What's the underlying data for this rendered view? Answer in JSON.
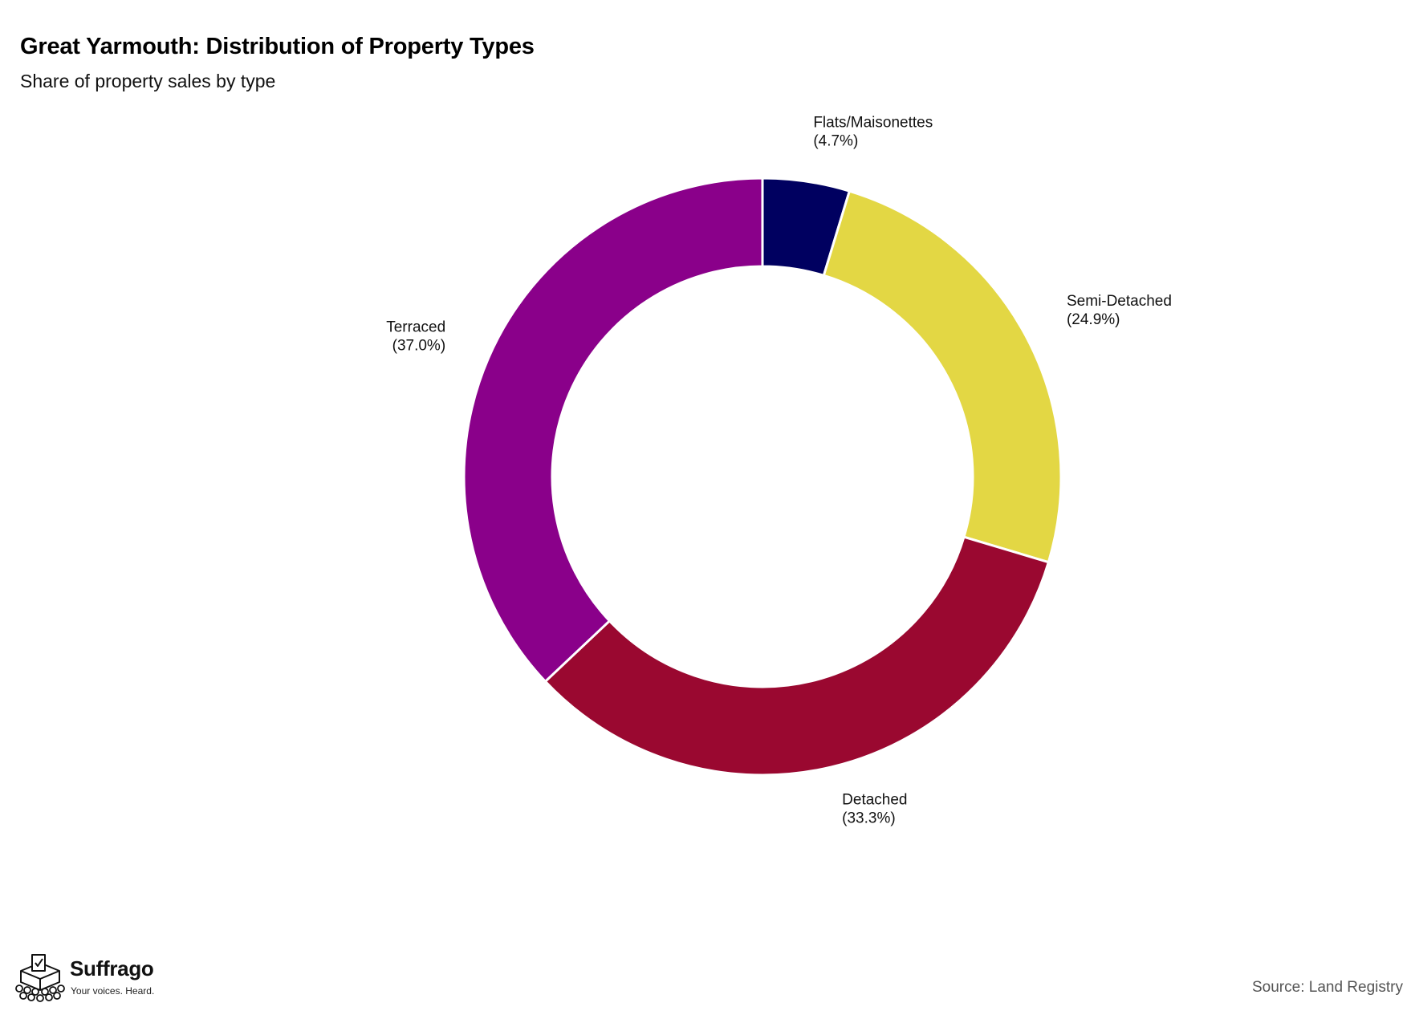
{
  "chart_data": {
    "type": "pie",
    "variant": "donut",
    "title": "Great Yarmouth: Distribution of Property Types",
    "subtitle": "Share of property sales by type",
    "slices": [
      {
        "label": "Flats/Maisonettes",
        "value": 4.7,
        "value_label": "(4.7%)",
        "color": "#000060"
      },
      {
        "label": "Semi-Detached",
        "value": 24.9,
        "value_label": "(24.9%)",
        "color": "#E3D744"
      },
      {
        "label": "Detached",
        "value": 33.3,
        "value_label": "(33.3%)",
        "color": "#9A0830"
      },
      {
        "label": "Terraced",
        "value": 37.0,
        "value_label": "(37.0%)",
        "color": "#8A008A"
      }
    ],
    "start": "top",
    "direction": "clockwise",
    "legend": "none"
  },
  "logo": {
    "name": "Suffrago",
    "tagline": "Your voices. Heard.",
    "icon": "ballot-box-crowd-icon"
  },
  "source": "Source: Land Registry"
}
